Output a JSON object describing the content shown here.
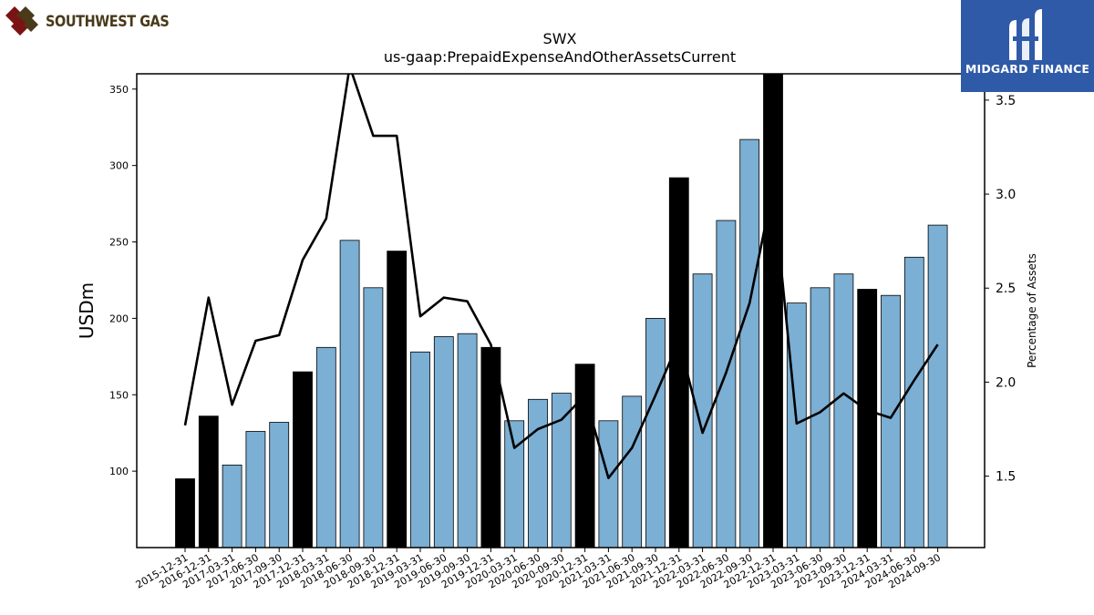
{
  "brand": {
    "left_logo_text": "SOUTHWEST GAS",
    "right_logo_text": "MIDGARD FINANCE"
  },
  "chart_data": {
    "type": "bar",
    "title": "SWX",
    "subtitle": "us-gaap:PrepaidExpenseAndOtherAssetsCurrent",
    "ylabel": "USDm",
    "y2label": "Percentage of Assets",
    "ylim": [
      50,
      360
    ],
    "y2lim": [
      1.12,
      3.64
    ],
    "y_ticks": [
      100,
      150,
      200,
      250,
      300,
      350
    ],
    "y2_ticks": [
      "1.5",
      "2.0",
      "2.5",
      "3.0",
      "3.5"
    ],
    "categories": [
      "2015-12-31",
      "2016-12-31",
      "2017-03-31",
      "2017-06-30",
      "2017-09-30",
      "2017-12-31",
      "2018-03-31",
      "2018-06-30",
      "2018-09-30",
      "2018-12-31",
      "2019-03-31",
      "2019-06-30",
      "2019-09-30",
      "2019-12-31",
      "2020-03-31",
      "2020-06-30",
      "2020-09-30",
      "2020-12-31",
      "2021-03-31",
      "2021-06-30",
      "2021-09-30",
      "2021-12-31",
      "2022-03-31",
      "2022-06-30",
      "2022-09-30",
      "2022-12-31",
      "2023-03-31",
      "2023-06-30",
      "2023-09-30",
      "2023-12-31",
      "2024-03-31",
      "2024-06-30",
      "2024-09-30"
    ],
    "series": [
      {
        "values": [
          95,
          136,
          104,
          126,
          132,
          165,
          181,
          251,
          220,
          244,
          178,
          188,
          190,
          181,
          133,
          147,
          151,
          170,
          133,
          149,
          200,
          292,
          229,
          264,
          317,
          360,
          210,
          220,
          229,
          219,
          215,
          240,
          261
        ],
        "annual_flags": [
          true,
          true,
          false,
          false,
          false,
          true,
          false,
          false,
          false,
          true,
          false,
          false,
          false,
          true,
          false,
          false,
          false,
          true,
          false,
          false,
          false,
          true,
          false,
          false,
          false,
          true,
          false,
          false,
          false,
          true,
          false,
          false,
          false
        ]
      },
      {
        "axis": "right",
        "values": [
          1.77,
          2.45,
          1.88,
          2.22,
          2.25,
          2.65,
          2.87,
          3.68,
          3.31,
          3.31,
          2.35,
          2.45,
          2.43,
          2.2,
          1.65,
          1.75,
          1.8,
          1.93,
          1.49,
          1.65,
          1.93,
          2.22,
          1.73,
          2.05,
          2.42,
          3.04,
          1.78,
          1.84,
          1.94,
          1.85,
          1.81,
          2.01,
          2.2
        ]
      }
    ],
    "colors": {
      "annual_bar": "#000000",
      "quarterly_bar": "#7bafd4",
      "line": "#000000"
    }
  }
}
